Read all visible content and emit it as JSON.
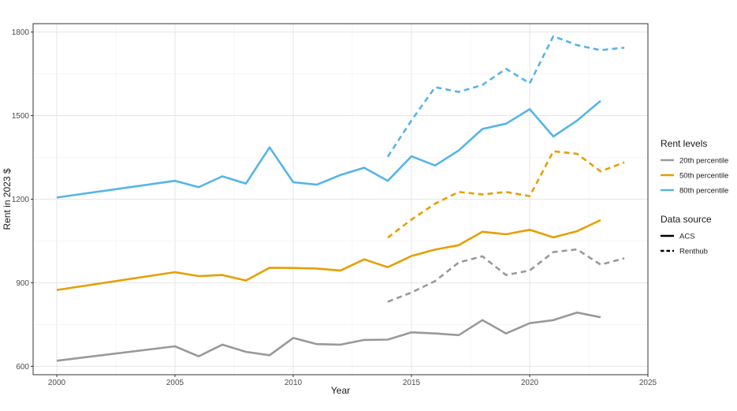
{
  "chart_data": {
    "type": "line",
    "xlabel": "Year",
    "ylabel": "Rent in 2023 $",
    "xlim": [
      1999,
      2025
    ],
    "ylim": [
      570,
      1830
    ],
    "x_ticks": [
      2000,
      2005,
      2010,
      2015,
      2020,
      2025
    ],
    "y_ticks": [
      600,
      900,
      1200,
      1500,
      1800
    ],
    "grid": true,
    "legend_position": "right",
    "legend": {
      "rent_levels_title": "Rent levels",
      "data_source_title": "Data source",
      "levels": [
        {
          "name": "20th percentile",
          "color": "#999999"
        },
        {
          "name": "50th percentile",
          "color": "#E69F00"
        },
        {
          "name": "80th percentile",
          "color": "#56B4E9"
        }
      ],
      "sources": [
        {
          "name": "ACS",
          "style": "solid"
        },
        {
          "name": "Renthub",
          "style": "dashed"
        }
      ]
    },
    "series": [
      {
        "name": "20th percentile",
        "source": "ACS",
        "color": "#999999",
        "style": "solid",
        "points": [
          [
            2000,
            620
          ],
          [
            2005,
            672
          ],
          [
            2006,
            636
          ],
          [
            2007,
            678
          ],
          [
            2008,
            652
          ],
          [
            2009,
            640
          ],
          [
            2010,
            702
          ],
          [
            2011,
            680
          ],
          [
            2012,
            678
          ],
          [
            2013,
            695
          ],
          [
            2014,
            696
          ],
          [
            2015,
            722
          ],
          [
            2016,
            718
          ],
          [
            2017,
            712
          ],
          [
            2018,
            766
          ],
          [
            2019,
            718
          ],
          [
            2020,
            755
          ],
          [
            2021,
            766
          ],
          [
            2022,
            793
          ],
          [
            2023,
            776
          ]
        ]
      },
      {
        "name": "50th percentile",
        "source": "ACS",
        "color": "#E69F00",
        "style": "solid",
        "points": [
          [
            2000,
            874
          ],
          [
            2005,
            938
          ],
          [
            2006,
            924
          ],
          [
            2007,
            928
          ],
          [
            2008,
            908
          ],
          [
            2009,
            954
          ],
          [
            2010,
            953
          ],
          [
            2011,
            951
          ],
          [
            2012,
            944
          ],
          [
            2013,
            984
          ],
          [
            2014,
            956
          ],
          [
            2015,
            996
          ],
          [
            2016,
            1019
          ],
          [
            2017,
            1035
          ],
          [
            2018,
            1083
          ],
          [
            2019,
            1074
          ],
          [
            2020,
            1090
          ],
          [
            2021,
            1063
          ],
          [
            2022,
            1085
          ],
          [
            2023,
            1125
          ]
        ]
      },
      {
        "name": "80th percentile",
        "source": "ACS",
        "color": "#56B4E9",
        "style": "solid",
        "points": [
          [
            2000,
            1206
          ],
          [
            2005,
            1266
          ],
          [
            2006,
            1243
          ],
          [
            2007,
            1282
          ],
          [
            2008,
            1256
          ],
          [
            2009,
            1386
          ],
          [
            2010,
            1261
          ],
          [
            2011,
            1252
          ],
          [
            2012,
            1287
          ],
          [
            2013,
            1313
          ],
          [
            2014,
            1266
          ],
          [
            2015,
            1354
          ],
          [
            2016,
            1321
          ],
          [
            2017,
            1375
          ],
          [
            2018,
            1452
          ],
          [
            2019,
            1471
          ],
          [
            2020,
            1523
          ],
          [
            2021,
            1425
          ],
          [
            2022,
            1482
          ],
          [
            2023,
            1553
          ]
        ]
      },
      {
        "name": "20th percentile",
        "source": "Renthub",
        "color": "#999999",
        "style": "dashed",
        "points": [
          [
            2014,
            832
          ],
          [
            2015,
            865
          ],
          [
            2016,
            906
          ],
          [
            2017,
            973
          ],
          [
            2018,
            995
          ],
          [
            2019,
            928
          ],
          [
            2020,
            944
          ],
          [
            2021,
            1010
          ],
          [
            2022,
            1020
          ],
          [
            2023,
            965
          ],
          [
            2024,
            988
          ]
        ]
      },
      {
        "name": "50th percentile",
        "source": "Renthub",
        "color": "#E69F00",
        "style": "dashed",
        "points": [
          [
            2014,
            1062
          ],
          [
            2015,
            1127
          ],
          [
            2016,
            1184
          ],
          [
            2017,
            1226
          ],
          [
            2018,
            1217
          ],
          [
            2019,
            1226
          ],
          [
            2020,
            1211
          ],
          [
            2021,
            1372
          ],
          [
            2022,
            1363
          ],
          [
            2023,
            1300
          ],
          [
            2024,
            1332
          ]
        ]
      },
      {
        "name": "80th percentile",
        "source": "Renthub",
        "color": "#56B4E9",
        "style": "dashed",
        "points": [
          [
            2014,
            1353
          ],
          [
            2015,
            1483
          ],
          [
            2016,
            1602
          ],
          [
            2017,
            1585
          ],
          [
            2018,
            1610
          ],
          [
            2019,
            1668
          ],
          [
            2020,
            1616
          ],
          [
            2021,
            1785
          ],
          [
            2022,
            1753
          ],
          [
            2023,
            1735
          ],
          [
            2024,
            1744
          ]
        ]
      }
    ]
  }
}
